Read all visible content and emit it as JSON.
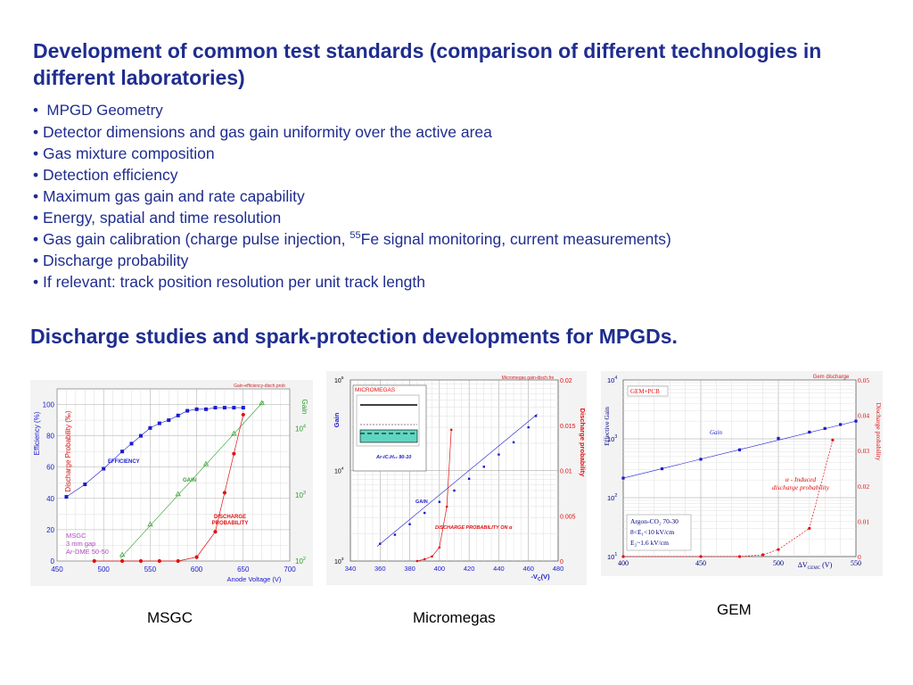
{
  "slide": {
    "title": "Development of common test standards (comparison of different technologies in different laboratories)",
    "bullets": [
      "MPGD Geometry",
      "Detector dimensions and gas gain uniformity over the active area",
      "Gas mixture composition",
      "Detection efficiency",
      "Maximum gas gain and rate capability",
      "Energy, spatial and time resolution",
      "Fe signal monitoring, current measurements)",
      "Discharge probability",
      "If relevant: track position resolution per unit track length"
    ],
    "bullet_symbol": "•",
    "bullet7_prefix": "Gas gain calibration (charge pulse injection, ",
    "bullet7_sup": "55",
    "subtitle": "Discharge studies and spark-protection developments for MPGDs.",
    "captions": {
      "msgc": "MSGC",
      "micromegas": "Micromegas",
      "gem": "GEM"
    },
    "colors": {
      "heading": "#1f2d8f",
      "blue_series": "#1a1ad0",
      "red_series": "#e01010",
      "green_series": "#2aa02a"
    }
  },
  "chart_data": [
    {
      "id": "msgc",
      "type": "line",
      "header": "Gain-efficiency-disch.prob",
      "xlabel": "Anode Voltage (V)",
      "ylabel_left": "Efficiency (%)",
      "ylabel_left2": "Discharge Probability (‰)",
      "ylabel_right": "Gain",
      "x_ticks": [
        "450",
        "500",
        "550",
        "600",
        "650",
        "700"
      ],
      "y_ticks": [
        "0",
        "20",
        "40",
        "60",
        "80",
        "100"
      ],
      "gain_ticks": [
        {
          "b": "10",
          "e": "2"
        },
        {
          "b": "10",
          "e": "3"
        },
        {
          "b": "10",
          "e": "4"
        }
      ],
      "xlim": [
        450,
        700
      ],
      "ylim": [
        0,
        110
      ],
      "series": [
        {
          "name": "EFFICIENCY",
          "x": [
            460,
            480,
            500,
            520,
            530,
            540,
            550,
            560,
            570,
            580,
            590,
            600,
            610,
            620,
            630,
            640,
            650
          ],
          "y": [
            41,
            49,
            59,
            70,
            75,
            80,
            85,
            88,
            90,
            93,
            96,
            97,
            97,
            98,
            98,
            98,
            98
          ]
        },
        {
          "name": "GAIN",
          "x": [
            520,
            550,
            580,
            610,
            640,
            670
          ],
          "y": [
            125,
            360,
            1030,
            2950,
            8500,
            24500
          ]
        },
        {
          "name": "DISCHARGE PROBABILITY",
          "x": [
            490,
            520,
            540,
            560,
            580,
            600,
            620,
            630,
            640,
            650
          ],
          "y": [
            0,
            0,
            0,
            0,
            0,
            0.02,
            0.15,
            0.35,
            0.55,
            0.75
          ]
        }
      ],
      "annotations": [
        "MSGC",
        "3 mm gap",
        "Ar-DME 50-50"
      ]
    },
    {
      "id": "micromegas",
      "type": "line",
      "header": "Micromegas gain-disch.fre",
      "xlabel": "-V",
      "xlabel_sub": "C",
      "xlabel_unit": "(V)",
      "ylabel_left": "Gain",
      "ylabel_right": "Discharge probability",
      "x_ticks": [
        "340",
        "360",
        "380",
        "400",
        "420",
        "440",
        "460",
        "480"
      ],
      "right_ticks": [
        "0",
        "0.005",
        "0.01",
        "0.015",
        "0.02"
      ],
      "gain_ticks": [
        {
          "b": "10",
          "e": "3"
        },
        {
          "b": "10",
          "e": "4"
        },
        {
          "b": "10",
          "e": "5"
        }
      ],
      "xlim": [
        340,
        480
      ],
      "ylim": [
        0,
        0.02
      ],
      "series": [
        {
          "name": "GAIN",
          "x": [
            360,
            370,
            380,
            390,
            400,
            410,
            420,
            430,
            440,
            450,
            460,
            465
          ],
          "y": [
            1550,
            1950,
            2550,
            3400,
            4500,
            6000,
            8100,
            11000,
            15000,
            20500,
            30000,
            40000
          ]
        },
        {
          "name": "DISCHARGE PROBABILITY ON α",
          "x": [
            385,
            390,
            395,
            400,
            405,
            408
          ],
          "y": [
            0,
            0.0002,
            0.0005,
            0.0015,
            0.006,
            0.0145
          ]
        }
      ],
      "annotations": [
        "MICROMEGAS",
        "Ar-iC₄H₁₀  90-10",
        "GAIN",
        "DISCHARGE PROBABILITY ON α"
      ]
    },
    {
      "id": "gem",
      "type": "line",
      "header": "Gem discharge",
      "xlabel": "ΔV",
      "xlabel_sub": "GEMC",
      "xlabel_unit": "(V)",
      "ylabel_left": "Effective Gain",
      "ylabel_right": "Discharge probability",
      "x_ticks": [
        "400",
        "450",
        "500",
        "550"
      ],
      "right_ticks": [
        "0",
        "0.01",
        "0.02",
        "0.03",
        "0.04",
        "0.05"
      ],
      "gain_ticks": [
        {
          "b": "10",
          "e": "1"
        },
        {
          "b": "10",
          "e": "2"
        },
        {
          "b": "10",
          "e": "3"
        },
        {
          "b": "10",
          "e": "4"
        }
      ],
      "xlim": [
        400,
        550
      ],
      "ylim": [
        0,
        0.05
      ],
      "series": [
        {
          "name": "Gain",
          "x": [
            400,
            425,
            450,
            475,
            500,
            520,
            530,
            540,
            550
          ],
          "y": [
            215,
            310,
            450,
            650,
            1020,
            1300,
            1500,
            1750,
            2000
          ]
        },
        {
          "name": "α - Induced discharge probability",
          "x": [
            400,
            450,
            475,
            490,
            500,
            520,
            535
          ],
          "y": [
            0,
            0,
            0,
            0.0005,
            0.002,
            0.008,
            0.033
          ]
        }
      ],
      "annotations": [
        "GEM+PCB",
        "Gain",
        "α - Induced",
        "discharge probability",
        "Argon-CO₂ 70-30",
        "8<E₁<10 kV/cm",
        "E₂~1.6 kV/cm"
      ]
    }
  ]
}
